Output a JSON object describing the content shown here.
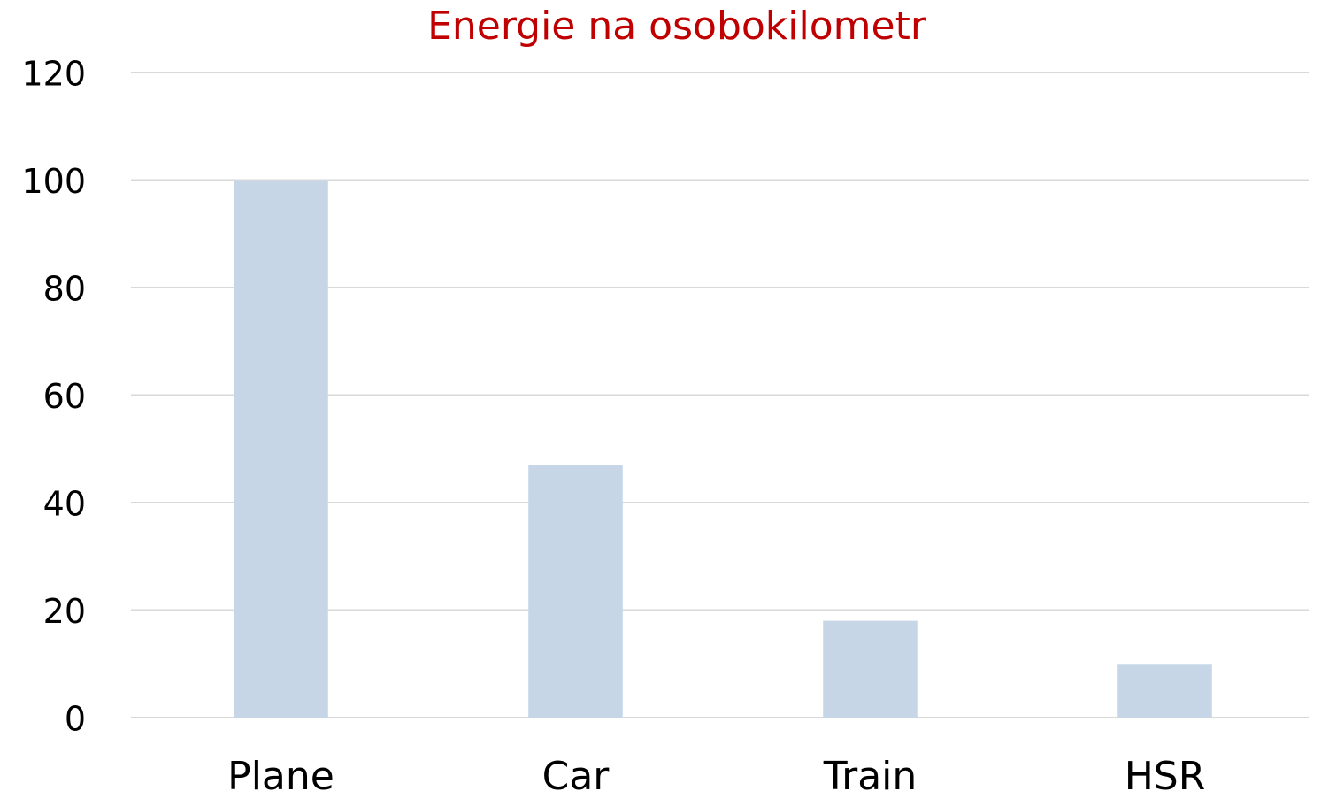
{
  "chart_data": {
    "type": "bar",
    "title": "Energie na osobokilometr",
    "categories": [
      "Plane",
      "Car",
      "Train",
      "HSR"
    ],
    "values": [
      100,
      47,
      18,
      10
    ],
    "color": "#c6d6e6",
    "ylim": [
      0,
      120
    ],
    "yticks": [
      0,
      20,
      40,
      60,
      80,
      100,
      120
    ],
    "grid": true
  }
}
